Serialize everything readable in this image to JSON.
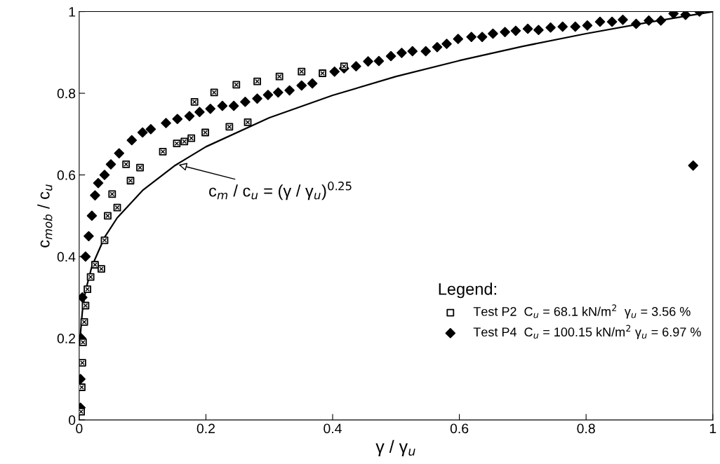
{
  "chart_data": {
    "type": "scatter",
    "xlabel": "γ / γ$_{u}$",
    "ylabel": "c$_{mob}$ / c$_{u}$",
    "legend_title": "Legend:",
    "legend": "bottom right",
    "grid": false,
    "xlim": [
      0,
      1
    ],
    "ylim": [
      0,
      1
    ],
    "xticks": [
      0,
      0.2,
      0.4,
      0.6,
      0.8,
      1
    ],
    "yticks": [
      0,
      0.2,
      0.4,
      0.6,
      0.8,
      1
    ],
    "annotations": [
      {
        "text": "c$_{m}$ / c$_{u}$ = (γ / γ$_{u}$)$^{0.25}$",
        "x": 0.154,
        "y": 0.626
      }
    ],
    "series": [
      {
        "name": "Test P2  C$_{u}$ = 68.1 kN/m$^{2}$  γ$_{u}$ = 3.56 %",
        "marker": "square",
        "color": "#000000",
        "x": [
          0.003,
          0.004,
          0.005,
          0.006,
          0.008,
          0.01,
          0.013,
          0.018,
          0.025,
          0.035,
          0.04,
          0.045,
          0.052,
          0.06,
          0.074,
          0.081,
          0.096,
          0.132,
          0.154,
          0.166,
          0.177,
          0.199,
          0.237,
          0.266,
          0.182,
          0.213,
          0.248,
          0.281,
          0.316,
          0.351,
          0.384,
          0.418
        ],
        "values": [
          0.02,
          0.08,
          0.14,
          0.19,
          0.24,
          0.28,
          0.32,
          0.35,
          0.38,
          0.37,
          0.44,
          0.5,
          0.553,
          0.52,
          0.626,
          0.586,
          0.618,
          0.657,
          0.677,
          0.682,
          0.69,
          0.704,
          0.718,
          0.729,
          0.779,
          0.802,
          0.821,
          0.829,
          0.841,
          0.853,
          0.849,
          0.866
        ]
      },
      {
        "name": "Test P4  C$_{u}$ = 100.15 kN/m$^{2}$ γ$_{u}$ = 6.97 %",
        "marker": "diamond",
        "color": "#000000",
        "x": [
          0.002,
          0.002,
          0.003,
          0.005,
          0.01,
          0.015,
          0.02,
          0.025,
          0.03,
          0.04,
          0.05,
          0.063,
          0.083,
          0.1,
          0.113,
          0.137,
          0.155,
          0.174,
          0.19,
          0.207,
          0.226,
          0.244,
          0.262,
          0.281,
          0.298,
          0.314,
          0.332,
          0.351,
          0.368,
          0.403,
          0.418,
          0.437,
          0.456,
          0.473,
          0.492,
          0.509,
          0.526,
          0.547,
          0.565,
          0.58,
          0.598,
          0.619,
          0.636,
          0.653,
          0.672,
          0.689,
          0.708,
          0.725,
          0.744,
          0.763,
          0.783,
          0.802,
          0.822,
          0.841,
          0.858,
          0.879,
          0.899,
          0.918,
          0.938,
          0.957,
          0.979,
          0.969
        ],
        "values": [
          0.03,
          0.1,
          0.2,
          0.3,
          0.4,
          0.45,
          0.5,
          0.55,
          0.58,
          0.6,
          0.626,
          0.653,
          0.685,
          0.704,
          0.712,
          0.727,
          0.737,
          0.744,
          0.754,
          0.762,
          0.769,
          0.769,
          0.779,
          0.787,
          0.796,
          0.802,
          0.807,
          0.819,
          0.824,
          0.853,
          0.861,
          0.866,
          0.878,
          0.879,
          0.891,
          0.899,
          0.903,
          0.903,
          0.913,
          0.921,
          0.933,
          0.938,
          0.938,
          0.946,
          0.95,
          0.953,
          0.958,
          0.955,
          0.961,
          0.963,
          0.963,
          0.966,
          0.975,
          0.975,
          0.98,
          0.97,
          0.978,
          0.978,
          0.995,
          0.992,
          1.0,
          0.623
        ]
      },
      {
        "type": "line",
        "marker": "none",
        "line_style": "solid",
        "color": "#000000",
        "x": [
          0.002,
          0.005,
          0.01,
          0.02,
          0.04,
          0.06,
          0.1,
          0.15,
          0.2,
          0.3,
          0.4,
          0.5,
          0.6,
          0.7,
          0.8,
          0.9,
          1
        ],
        "values": [
          0.211,
          0.266,
          0.316,
          0.376,
          0.447,
          0.495,
          0.562,
          0.622,
          0.669,
          0.74,
          0.795,
          0.841,
          0.88,
          0.915,
          0.946,
          0.974,
          1
        ]
      }
    ]
  }
}
